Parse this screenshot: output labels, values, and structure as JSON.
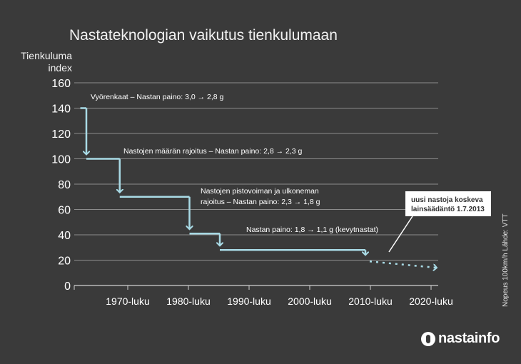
{
  "chart_data": {
    "type": "line",
    "title": "Nastateknologian vaikutus tienkulumaan",
    "ylabel": [
      "Tienkuluma",
      "index"
    ],
    "ylim": [
      0,
      160
    ],
    "yticks": [
      0,
      20,
      40,
      60,
      80,
      100,
      120,
      140,
      160
    ],
    "grid": true,
    "xlim": [
      1965,
      2025
    ],
    "categories": [
      "1970-luku",
      "1980-luku",
      "1990-luku",
      "2000-luku",
      "2010-luku",
      "2020-luku"
    ],
    "series": [
      {
        "steps": [
          {
            "x": [
              1966,
              1967
            ],
            "y": 140
          },
          {
            "x": [
              1967,
              1972.5
            ],
            "y": 100
          },
          {
            "x": [
              1972.5,
              1984
            ],
            "y": 70
          },
          {
            "x": [
              1984,
              1989
            ],
            "y": 41
          },
          {
            "x": [
              1989,
              2013
            ],
            "y": 28
          }
        ],
        "projection": [
          {
            "x": 2013,
            "y": 19
          },
          {
            "x": 2025,
            "y": 14
          }
        ]
      }
    ],
    "annotations": [
      {
        "text": "Vyörenkaat – Nastan paino: 3,0 → 2,8 g"
      },
      {
        "text": "Nastojen määrän rajoitus – Nastan paino: 2,8 → 2,3 g"
      },
      {
        "text": "Nastojen pistovoiman ja ulkoneman"
      },
      {
        "text": "rajoitus – Nastan paino: 2,3 → 1,8 g"
      },
      {
        "text": "Nastan paino: 1,8 → 1,1 g (kevytnastat)"
      }
    ],
    "callout": {
      "line1": "uusi nastoja koskeva",
      "line2": "lainsäädäntö 1.7.2013"
    },
    "source": "Nopeus 100km/h Lähde: VTT",
    "brand": "nastainfo",
    "colors": {
      "line": "#a9dbe6",
      "grid": "#8c8c8c",
      "text": "#ffffff",
      "background": "#3a3a3a"
    }
  }
}
